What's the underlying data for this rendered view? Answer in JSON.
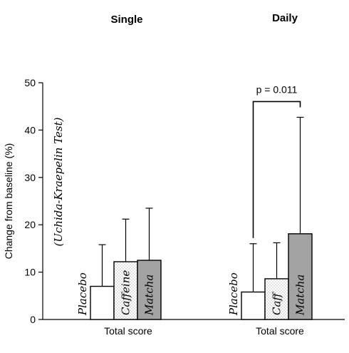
{
  "chart_data": {
    "type": "bar",
    "ylabel": "Change from baseline (%)",
    "ylim": [
      0,
      50
    ],
    "yticks": [
      0,
      10,
      20,
      30,
      40,
      50
    ],
    "side_note": "(Uchida-Kraepelin Test)",
    "panels": [
      {
        "title": "Single",
        "xlabel": "Total score",
        "bars": [
          {
            "label": "Placebo",
            "value": 7.0,
            "error": 8.8,
            "fill": "white"
          },
          {
            "label": "Caffeine",
            "value": 12.2,
            "error": 9.0,
            "fill": "dots"
          },
          {
            "label": "Matcha",
            "value": 12.5,
            "error": 11.0,
            "fill": "gray"
          }
        ]
      },
      {
        "title": "Daily",
        "xlabel": "Total score",
        "bars": [
          {
            "label": "Placebo",
            "value": 5.8,
            "error": 10.2,
            "fill": "white"
          },
          {
            "label": "Caff",
            "value": 8.6,
            "error": 7.6,
            "fill": "dots"
          },
          {
            "label": "Matcha",
            "value": 18.1,
            "error": 24.6,
            "fill": "gray"
          }
        ],
        "significance": {
          "text": "p = 0.011",
          "from_bar": 0,
          "to_bar": 2
        }
      }
    ]
  },
  "colors": {
    "gray": "#a3a3a3",
    "white": "#ffffff",
    "axis": "#000000"
  }
}
